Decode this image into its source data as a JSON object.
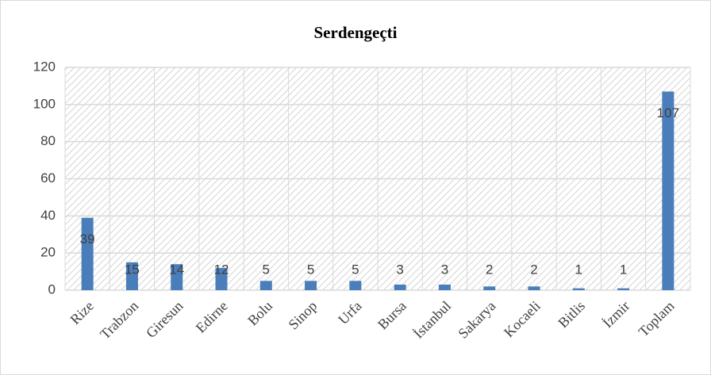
{
  "chart_data": {
    "type": "bar",
    "title": "Serdengeçti",
    "categories": [
      "Rize",
      "Trabzon",
      "Giresun",
      "Edirne",
      "Bolu",
      "Sinop",
      "Urfa",
      "Bursa",
      "İstanbul",
      "Sakarya",
      "Kocaeli",
      "Bitlis",
      "İzmir",
      "Toplam"
    ],
    "values": [
      39,
      15,
      14,
      12,
      5,
      5,
      5,
      3,
      3,
      2,
      2,
      1,
      1,
      107
    ],
    "color": "#4a7ebb",
    "ylim": [
      0,
      120
    ],
    "yticks": [
      0,
      20,
      40,
      60,
      80,
      100,
      120
    ],
    "grid": true
  }
}
